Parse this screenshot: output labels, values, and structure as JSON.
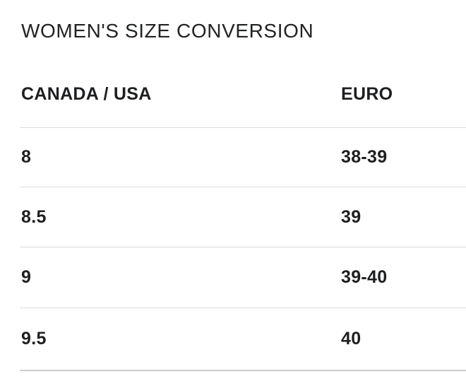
{
  "title": "WOMEN'S SIZE CONVERSION",
  "colors": {
    "background": "#ffffff",
    "text": "#1e1f21",
    "title_text": "#222325",
    "divider": "#dadadd"
  },
  "table": {
    "columns": [
      {
        "label": "CANADA / USA"
      },
      {
        "label": "EURO"
      }
    ],
    "rows": [
      {
        "canada_usa": "8",
        "euro": "38-39"
      },
      {
        "canada_usa": "8.5",
        "euro": "39"
      },
      {
        "canada_usa": "9",
        "euro": "39-40"
      },
      {
        "canada_usa": "9.5",
        "euro": "40"
      }
    ]
  }
}
